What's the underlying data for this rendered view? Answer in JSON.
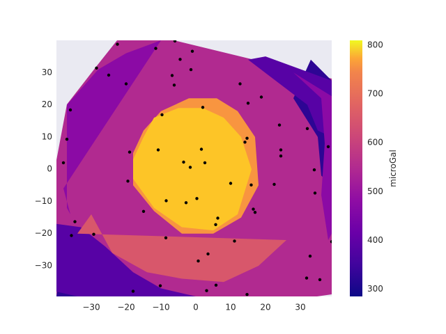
{
  "chart_data": {
    "type": "contour",
    "title": "",
    "xlabel": "",
    "ylabel": "",
    "xlim": [
      -40,
      39
    ],
    "ylim": [
      -39.5,
      40
    ],
    "xticks": [
      -30,
      -20,
      -10,
      0,
      10,
      20,
      30
    ],
    "yticks": [
      -30,
      -20,
      -10,
      0,
      10,
      20,
      30
    ],
    "xtick_labels": [
      "−30",
      "−20",
      "−10",
      "0",
      "10",
      "20",
      "30"
    ],
    "ytick_labels": [
      "−30",
      "−20",
      "−10",
      "0",
      "10",
      "20",
      "30"
    ],
    "grid": false,
    "background": "#eaeaf2",
    "colormap": "plasma",
    "colorbar": {
      "label": "microGal",
      "range": [
        285,
        810
      ],
      "ticks": [
        300,
        400,
        500,
        600,
        700,
        800
      ],
      "tick_labels": [
        "300",
        "400",
        "500",
        "600",
        "700",
        "800"
      ]
    },
    "contour_levels": [
      {
        "from": 285,
        "to": 345,
        "color": "#2d0594"
      },
      {
        "from": 345,
        "to": 405,
        "color": "#5702a5"
      },
      {
        "from": 405,
        "to": 465,
        "color": "#8b0aa5"
      },
      {
        "from": 465,
        "to": 525,
        "color": "#b12a90"
      },
      {
        "from": 525,
        "to": 585,
        "color": "#d8576b"
      },
      {
        "from": 585,
        "to": 645,
        "color": "#ec7853"
      },
      {
        "from": 645,
        "to": 705,
        "color": "#f89540"
      },
      {
        "from": 705,
        "to": 765,
        "color": "#fdc527"
      }
    ],
    "contour_regions": [
      {
        "level": 0,
        "points": [
          [
            -40,
            -39.5
          ],
          [
            -38,
            -24
          ],
          [
            -32,
            -28
          ],
          [
            -25,
            -35
          ],
          [
            -18,
            -39.5
          ],
          [
            -40,
            -39.5
          ]
        ]
      },
      {
        "level": 0,
        "points": [
          [
            39,
            -5
          ],
          [
            39,
            27.5
          ],
          [
            33,
            34
          ],
          [
            28,
            22
          ],
          [
            35,
            10
          ],
          [
            36,
            -2
          ]
        ]
      },
      {
        "level": 1,
        "points": [
          [
            -40,
            -33
          ],
          [
            -40,
            -17
          ],
          [
            -33,
            -18
          ],
          [
            -26,
            -24
          ],
          [
            -18,
            -32
          ],
          [
            -10,
            -37
          ],
          [
            0,
            -39.5
          ],
          [
            -34,
            -39.5
          ],
          [
            -40,
            -38
          ]
        ]
      },
      {
        "level": 1,
        "points": [
          [
            39,
            10
          ],
          [
            39,
            27.5
          ],
          [
            20,
            35
          ],
          [
            15,
            34
          ],
          [
            32,
            20
          ],
          [
            35,
            12
          ]
        ]
      },
      {
        "level": 2,
        "points": [
          [
            -37,
            -12
          ],
          [
            -37,
            20
          ],
          [
            -28,
            31
          ],
          [
            -20,
            36
          ],
          [
            -10,
            40
          ],
          [
            -38,
            -6
          ],
          [
            -36,
            -14
          ]
        ]
      },
      {
        "level": 2,
        "points": [
          [
            38,
            -22
          ],
          [
            36,
            -8
          ],
          [
            37,
            8
          ],
          [
            36,
            22
          ],
          [
            28,
            30
          ],
          [
            40,
            22
          ],
          [
            39,
            -20
          ]
        ]
      },
      {
        "level": 4,
        "points": [
          [
            -34,
            -20
          ],
          [
            -30,
            -14
          ],
          [
            -24,
            -26
          ],
          [
            -14,
            -32
          ],
          [
            -4,
            -34
          ],
          [
            8,
            -35
          ],
          [
            18,
            -30
          ],
          [
            26,
            -22
          ]
        ]
      },
      {
        "level": 6,
        "points": [
          [
            -18,
            5
          ],
          [
            -15,
            12
          ],
          [
            -10,
            18
          ],
          [
            -2,
            22
          ],
          [
            6,
            22
          ],
          [
            12,
            18
          ],
          [
            17,
            10
          ],
          [
            18,
            -5
          ],
          [
            13,
            -15
          ],
          [
            5,
            -20
          ],
          [
            -4,
            -20
          ],
          [
            -12,
            -13
          ],
          [
            -18,
            -5
          ]
        ]
      },
      {
        "level": 7,
        "points": [
          [
            -18,
            3
          ],
          [
            -15,
            10
          ],
          [
            -12,
            16
          ],
          [
            -5,
            19
          ],
          [
            2,
            19
          ],
          [
            8,
            16
          ],
          [
            13,
            10
          ],
          [
            16,
            0
          ],
          [
            12,
            -14
          ],
          [
            5,
            -19
          ],
          [
            -4,
            -18
          ],
          [
            -12,
            -12
          ],
          [
            -18,
            -3
          ]
        ]
      }
    ],
    "series": [
      {
        "type": "scatter",
        "color": "#000000",
        "points": [
          [
            -22.5,
            38.8
          ],
          [
            -11.5,
            37.5
          ],
          [
            -6,
            39.8
          ],
          [
            -1,
            36.6
          ],
          [
            -4.5,
            34.1
          ],
          [
            -28.5,
            31.4
          ],
          [
            -25,
            29.2
          ],
          [
            -6.8,
            29.1
          ],
          [
            -1.4,
            30.9
          ],
          [
            -20,
            26.5
          ],
          [
            -6.2,
            26.1
          ],
          [
            12.7,
            26.5
          ],
          [
            18.8,
            22.4
          ],
          [
            15,
            20.5
          ],
          [
            2,
            19.2
          ],
          [
            -36,
            18.4
          ],
          [
            -9.7,
            16.9
          ],
          [
            24,
            13.7
          ],
          [
            32,
            12.6
          ],
          [
            -37,
            9.3
          ],
          [
            14.1,
            8.4
          ],
          [
            14.7,
            9.6
          ],
          [
            -10.8,
            6
          ],
          [
            1.6,
            6.2
          ],
          [
            -19,
            5.3
          ],
          [
            24.4,
            6
          ],
          [
            38,
            7
          ],
          [
            24.4,
            4.1
          ],
          [
            -38,
            2
          ],
          [
            -3.5,
            2.2
          ],
          [
            2.6,
            2
          ],
          [
            -1.6,
            0.6
          ],
          [
            34,
            -0.2
          ],
          [
            -19.5,
            -3.7
          ],
          [
            10,
            -4.4
          ],
          [
            15.9,
            -4.9
          ],
          [
            22.5,
            -4.7
          ],
          [
            34.2,
            -7.4
          ],
          [
            0.3,
            -9.1
          ],
          [
            -8.5,
            -9.8
          ],
          [
            -2.8,
            -10.4
          ],
          [
            -15,
            -13.1
          ],
          [
            16.5,
            -12.4
          ],
          [
            17,
            -13.4
          ],
          [
            6.3,
            -15.2
          ],
          [
            5.7,
            -17.2
          ],
          [
            -34.7,
            -16.3
          ],
          [
            -8.6,
            -21.3
          ],
          [
            -35.7,
            -20.6
          ],
          [
            -29.3,
            -20.2
          ],
          [
            11.1,
            -22.3
          ],
          [
            39,
            -22.5
          ],
          [
            3.5,
            -26.3
          ],
          [
            0.7,
            -28.5
          ],
          [
            32.8,
            -27
          ],
          [
            31.8,
            -33.8
          ],
          [
            35.6,
            -34.3
          ],
          [
            -10.2,
            -36.2
          ],
          [
            5.8,
            -36
          ],
          [
            -18,
            -37.9
          ],
          [
            3.1,
            -37.7
          ],
          [
            14.7,
            -38.9
          ]
        ]
      }
    ]
  }
}
